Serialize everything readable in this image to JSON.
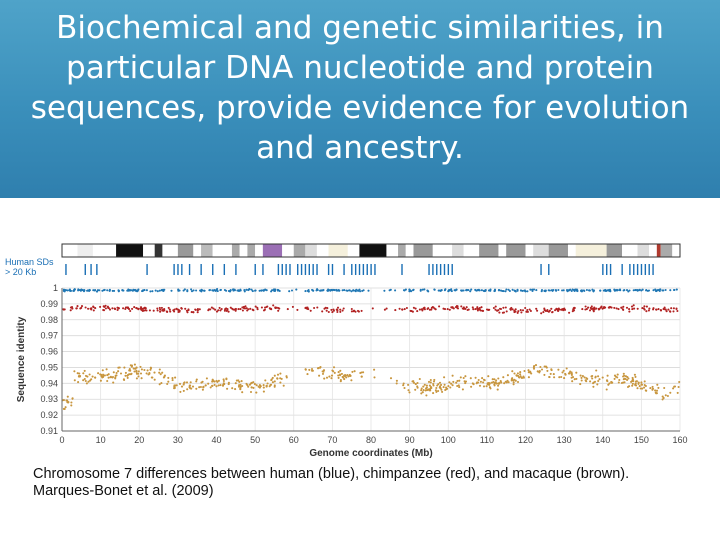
{
  "slide": {
    "title": "Biochemical and genetic similarities, in particular DNA nucleotide and protein sequences, provide evidence for evolution and ancestry.",
    "caption_line1": "Chromosome 7 differences between human (blue), chimpanzee (red), and macaque (brown).",
    "caption_line2": "Marques-Bonet et al. (2009)"
  },
  "chart_data": {
    "type": "scatter",
    "title": "",
    "xlabel": "Genome coordinates (Mb)",
    "ylabel": "Sequence identity",
    "xlim": [
      0,
      160
    ],
    "ylim": [
      0.91,
      1.0
    ],
    "xticks": [
      0,
      10,
      20,
      30,
      40,
      50,
      60,
      70,
      80,
      90,
      100,
      110,
      120,
      130,
      140,
      150,
      160
    ],
    "yticks": [
      0.91,
      0.92,
      0.93,
      0.94,
      0.95,
      0.96,
      0.97,
      0.98,
      0.99,
      1
    ],
    "grid": true,
    "segdup_track_label": [
      "Human SDs",
      "> 20 Kb"
    ],
    "series": [
      {
        "name": "human",
        "color": "#1f77b4",
        "mean": 0.9985,
        "spread": 0.0006
      },
      {
        "name": "chimpanzee",
        "color": "#b22222",
        "mean": 0.9865,
        "spread": 0.0015
      },
      {
        "name": "macaque",
        "color": "#c8963e",
        "mean": 0.9425,
        "spread": 0.004
      }
    ],
    "gaps_mb": [
      [
        57,
        63
      ],
      [
        78,
        88
      ]
    ],
    "macaque_dips": [
      [
        0,
        3,
        0.925
      ],
      [
        140,
        143,
        0.937
      ],
      [
        155,
        159,
        0.93
      ]
    ],
    "segdup_positions_mb": [
      1,
      6,
      7.5,
      9,
      22,
      29,
      30,
      31,
      33,
      36,
      39,
      42,
      45,
      50,
      52,
      56,
      57,
      58,
      59,
      61,
      62,
      63,
      64,
      65,
      66,
      69,
      70,
      73,
      75,
      76,
      77,
      78,
      79,
      80,
      81,
      88,
      95,
      96,
      97,
      98,
      99,
      100,
      101,
      124,
      126,
      140,
      141,
      142,
      145,
      147,
      148,
      149,
      150,
      151,
      152,
      153
    ],
    "ideogram_bands": [
      {
        "start": 0,
        "end": 4,
        "color": "#ffffff"
      },
      {
        "start": 4,
        "end": 8,
        "color": "#eeeeee"
      },
      {
        "start": 8,
        "end": 14,
        "color": "#ffffff"
      },
      {
        "start": 14,
        "end": 21,
        "color": "#111111"
      },
      {
        "start": 21,
        "end": 24,
        "color": "#ffffff"
      },
      {
        "start": 24,
        "end": 26,
        "color": "#333333"
      },
      {
        "start": 26,
        "end": 30,
        "color": "#ffffff"
      },
      {
        "start": 30,
        "end": 34,
        "color": "#999999"
      },
      {
        "start": 34,
        "end": 36,
        "color": "#ffffff"
      },
      {
        "start": 36,
        "end": 39,
        "color": "#bbbbbb"
      },
      {
        "start": 39,
        "end": 44,
        "color": "#ffffff"
      },
      {
        "start": 44,
        "end": 46,
        "color": "#aaaaaa"
      },
      {
        "start": 46,
        "end": 48,
        "color": "#ffffff"
      },
      {
        "start": 48,
        "end": 50,
        "color": "#aaaaaa"
      },
      {
        "start": 50,
        "end": 52,
        "color": "#ffffff"
      },
      {
        "start": 52,
        "end": 57,
        "color": "#9b6fb5"
      },
      {
        "start": 57,
        "end": 60,
        "color": "#ffffff"
      },
      {
        "start": 60,
        "end": 63,
        "color": "#aaaaaa"
      },
      {
        "start": 63,
        "end": 66,
        "color": "#dddddd"
      },
      {
        "start": 66,
        "end": 69,
        "color": "#ffffff"
      },
      {
        "start": 69,
        "end": 74,
        "color": "#f5f0dc"
      },
      {
        "start": 74,
        "end": 77,
        "color": "#ffffff"
      },
      {
        "start": 77,
        "end": 84,
        "color": "#111111"
      },
      {
        "start": 84,
        "end": 87,
        "color": "#ffffff"
      },
      {
        "start": 87,
        "end": 89,
        "color": "#aaaaaa"
      },
      {
        "start": 89,
        "end": 91,
        "color": "#ffffff"
      },
      {
        "start": 91,
        "end": 96,
        "color": "#999999"
      },
      {
        "start": 96,
        "end": 101,
        "color": "#ffffff"
      },
      {
        "start": 101,
        "end": 104,
        "color": "#dddddd"
      },
      {
        "start": 104,
        "end": 108,
        "color": "#ffffff"
      },
      {
        "start": 108,
        "end": 113,
        "color": "#999999"
      },
      {
        "start": 113,
        "end": 115,
        "color": "#ffffff"
      },
      {
        "start": 115,
        "end": 120,
        "color": "#999999"
      },
      {
        "start": 120,
        "end": 122,
        "color": "#ffffff"
      },
      {
        "start": 122,
        "end": 126,
        "color": "#dddddd"
      },
      {
        "start": 126,
        "end": 131,
        "color": "#999999"
      },
      {
        "start": 131,
        "end": 133,
        "color": "#ffffff"
      },
      {
        "start": 133,
        "end": 141,
        "color": "#f5f0dc"
      },
      {
        "start": 141,
        "end": 145,
        "color": "#999999"
      },
      {
        "start": 145,
        "end": 149,
        "color": "#ffffff"
      },
      {
        "start": 149,
        "end": 152,
        "color": "#dddddd"
      },
      {
        "start": 152,
        "end": 154,
        "color": "#ffffff"
      },
      {
        "start": 154,
        "end": 155,
        "color": "#b03a2e"
      },
      {
        "start": 155,
        "end": 158,
        "color": "#aaaaaa"
      },
      {
        "start": 158,
        "end": 160,
        "color": "#ffffff"
      }
    ]
  }
}
